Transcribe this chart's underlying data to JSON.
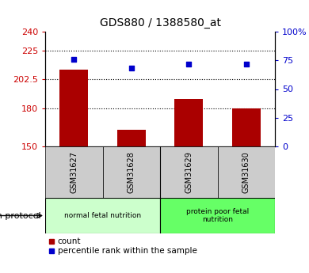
{
  "title": "GDS880 / 1388580_at",
  "samples": [
    "GSM31627",
    "GSM31628",
    "GSM31629",
    "GSM31630"
  ],
  "count_values": [
    210,
    163,
    187,
    180
  ],
  "percentile_values": [
    76,
    68,
    72,
    72
  ],
  "ylim_left": [
    150,
    240
  ],
  "ylim_right": [
    0,
    100
  ],
  "yticks_left": [
    150,
    180,
    202.5,
    225,
    240
  ],
  "ytick_labels_left": [
    "150",
    "180",
    "202.5",
    "225",
    "240"
  ],
  "yticks_right": [
    0,
    25,
    50,
    75,
    100
  ],
  "ytick_labels_right": [
    "0",
    "25",
    "50",
    "75",
    "100%"
  ],
  "bar_color": "#aa0000",
  "dot_color": "#0000cc",
  "bar_width": 0.5,
  "groups": [
    {
      "label": "normal fetal nutrition",
      "indices": [
        0,
        1
      ],
      "color": "#ccffcc"
    },
    {
      "label": "protein poor fetal\nnutrition",
      "indices": [
        2,
        3
      ],
      "color": "#66ff66"
    }
  ],
  "group_label": "growth protocol",
  "legend_count_label": "count",
  "legend_pct_label": "percentile rank within the sample",
  "label_color_left": "#cc0000",
  "label_color_right": "#0000cc",
  "background_label": "#cccccc",
  "hgrid_vals": [
    225,
    202.5,
    180
  ]
}
